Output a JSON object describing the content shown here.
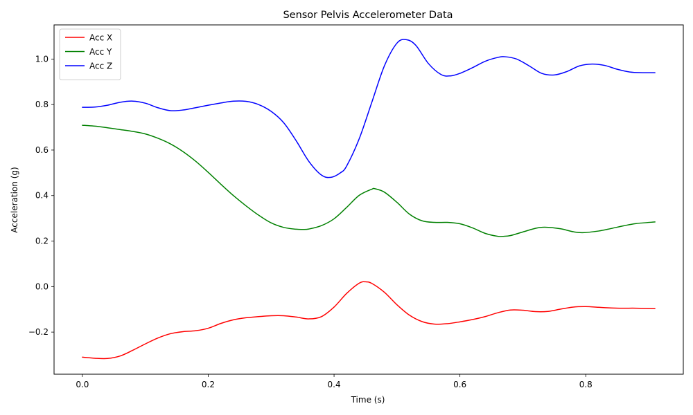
{
  "chart_data": {
    "type": "line",
    "title": "Sensor Pelvis Accelerometer Data",
    "xlabel": "Time (s)",
    "ylabel": "Acceleration (g)",
    "xlim": [
      -0.045,
      0.955
    ],
    "ylim": [
      -0.385,
      1.15
    ],
    "xticks": [
      0.0,
      0.2,
      0.4,
      0.6,
      0.8
    ],
    "xtick_labels": [
      "0.0",
      "0.2",
      "0.4",
      "0.6",
      "0.8"
    ],
    "yticks": [
      -0.2,
      0.0,
      0.2,
      0.4,
      0.6,
      0.8,
      1.0
    ],
    "ytick_labels": [
      "−0.2",
      "0.0",
      "0.2",
      "0.4",
      "0.6",
      "0.8",
      "1.0"
    ],
    "grid": false,
    "legend": "top-left",
    "series": [
      {
        "name": "Acc X",
        "color": "#ff0000",
        "x": [
          0.0,
          0.02,
          0.04,
          0.06,
          0.08,
          0.1,
          0.12,
          0.14,
          0.16,
          0.18,
          0.2,
          0.22,
          0.24,
          0.26,
          0.28,
          0.3,
          0.32,
          0.34,
          0.36,
          0.38,
          0.4,
          0.42,
          0.44,
          0.45,
          0.46,
          0.48,
          0.5,
          0.52,
          0.54,
          0.56,
          0.58,
          0.6,
          0.62,
          0.64,
          0.66,
          0.68,
          0.7,
          0.72,
          0.74,
          0.76,
          0.78,
          0.8,
          0.82,
          0.84,
          0.86,
          0.88,
          0.91
        ],
        "values": [
          -0.31,
          -0.315,
          -0.316,
          -0.305,
          -0.28,
          -0.252,
          -0.226,
          -0.207,
          -0.198,
          -0.194,
          -0.183,
          -0.162,
          -0.146,
          -0.137,
          -0.132,
          -0.128,
          -0.128,
          -0.134,
          -0.142,
          -0.132,
          -0.09,
          -0.03,
          0.015,
          0.021,
          0.014,
          -0.025,
          -0.08,
          -0.126,
          -0.154,
          -0.165,
          -0.163,
          -0.155,
          -0.145,
          -0.132,
          -0.115,
          -0.103,
          -0.104,
          -0.11,
          -0.109,
          -0.099,
          -0.09,
          -0.088,
          -0.091,
          -0.094,
          -0.095,
          -0.095,
          -0.097
        ]
      },
      {
        "name": "Acc Y",
        "color": "#008000",
        "x": [
          0.0,
          0.02,
          0.04,
          0.06,
          0.08,
          0.1,
          0.12,
          0.14,
          0.16,
          0.18,
          0.2,
          0.22,
          0.24,
          0.26,
          0.28,
          0.3,
          0.32,
          0.34,
          0.35,
          0.36,
          0.38,
          0.4,
          0.42,
          0.44,
          0.46,
          0.465,
          0.48,
          0.5,
          0.52,
          0.54,
          0.56,
          0.58,
          0.6,
          0.62,
          0.64,
          0.66,
          0.67,
          0.68,
          0.7,
          0.72,
          0.735,
          0.76,
          0.78,
          0.795,
          0.82,
          0.84,
          0.86,
          0.88,
          0.91
        ],
        "values": [
          0.709,
          0.705,
          0.698,
          0.69,
          0.682,
          0.671,
          0.652,
          0.627,
          0.593,
          0.551,
          0.502,
          0.45,
          0.4,
          0.355,
          0.314,
          0.28,
          0.26,
          0.252,
          0.251,
          0.253,
          0.268,
          0.298,
          0.348,
          0.401,
          0.428,
          0.43,
          0.415,
          0.37,
          0.318,
          0.289,
          0.282,
          0.282,
          0.276,
          0.258,
          0.234,
          0.221,
          0.221,
          0.224,
          0.24,
          0.256,
          0.261,
          0.254,
          0.241,
          0.237,
          0.244,
          0.255,
          0.267,
          0.277,
          0.284
        ]
      },
      {
        "name": "Acc Z",
        "color": "#0000ff",
        "x": [
          0.0,
          0.02,
          0.04,
          0.06,
          0.08,
          0.1,
          0.12,
          0.14,
          0.16,
          0.18,
          0.2,
          0.22,
          0.24,
          0.26,
          0.28,
          0.3,
          0.32,
          0.34,
          0.36,
          0.38,
          0.395,
          0.41,
          0.42,
          0.44,
          0.46,
          0.48,
          0.5,
          0.515,
          0.53,
          0.55,
          0.57,
          0.585,
          0.6,
          0.62,
          0.64,
          0.66,
          0.672,
          0.69,
          0.71,
          0.73,
          0.75,
          0.77,
          0.79,
          0.81,
          0.83,
          0.85,
          0.87,
          0.89,
          0.91
        ],
        "values": [
          0.788,
          0.789,
          0.797,
          0.81,
          0.815,
          0.806,
          0.786,
          0.773,
          0.776,
          0.786,
          0.797,
          0.807,
          0.815,
          0.814,
          0.8,
          0.77,
          0.72,
          0.64,
          0.55,
          0.49,
          0.48,
          0.5,
          0.53,
          0.65,
          0.81,
          0.97,
          1.07,
          1.085,
          1.06,
          0.98,
          0.932,
          0.926,
          0.937,
          0.962,
          0.99,
          1.007,
          1.01,
          1.0,
          0.97,
          0.937,
          0.93,
          0.945,
          0.97,
          0.978,
          0.972,
          0.955,
          0.943,
          0.94,
          0.94
        ]
      }
    ]
  }
}
